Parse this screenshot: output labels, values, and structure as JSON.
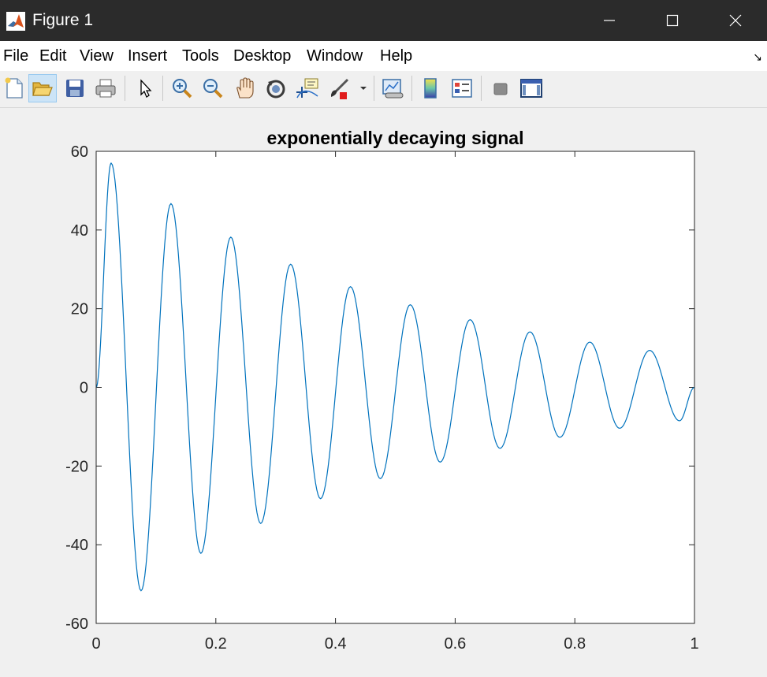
{
  "window": {
    "title": "Figure 1"
  },
  "menu": [
    "File",
    "Edit",
    "View",
    "Insert",
    "Tools",
    "Desktop",
    "Window",
    "Help"
  ],
  "toolbar_icons": [
    "new-figure-icon",
    "open-file-icon",
    "save-icon",
    "print-icon",
    "pointer-icon",
    "zoom-in-icon",
    "zoom-out-icon",
    "pan-icon",
    "rotate-3d-icon",
    "data-cursor-icon",
    "brush-icon",
    "brush-dropdown-icon",
    "link-plot-icon",
    "colorbar-icon",
    "legend-icon",
    "hide-plot-tools-icon",
    "show-plot-tools-icon"
  ],
  "colors": {
    "line": "#0072bd",
    "titlebar": "#2b2b2b",
    "figure_bg": "#f0f0f0"
  },
  "chart_data": {
    "type": "line",
    "title": "exponentially decaying signal",
    "xlabel": "",
    "ylabel": "",
    "xlim": [
      0,
      1
    ],
    "ylim": [
      -60,
      60
    ],
    "xticks": [
      "0",
      "0.2",
      "0.4",
      "0.6",
      "0.8",
      "1"
    ],
    "yticks": [
      "-60",
      "-40",
      "-20",
      "0",
      "20",
      "40",
      "60"
    ],
    "grid": false,
    "series": [
      {
        "x": [
          0,
          0.025,
          0.075,
          0.125,
          0.175,
          0.225,
          0.275,
          0.325,
          0.375,
          0.425,
          0.475,
          0.525,
          0.575,
          0.625,
          0.675,
          0.725,
          0.775,
          0.825,
          0.875,
          0.925,
          0.975,
          1.0
        ],
        "y": [
          0,
          57,
          -51.7,
          46.7,
          -42.2,
          38.2,
          -34.6,
          31.3,
          -28.3,
          25.6,
          -23.2,
          21,
          -19,
          17.2,
          -15.5,
          14.1,
          -12.7,
          11.5,
          -10.4,
          9.4,
          -8.5,
          0
        ]
      }
    ]
  }
}
